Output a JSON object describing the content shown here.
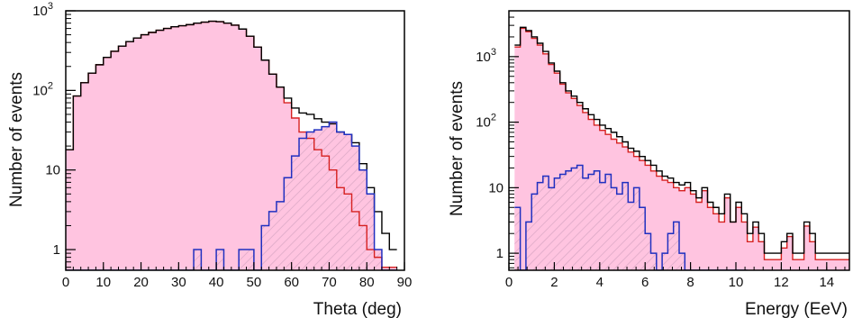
{
  "colors": {
    "total": "#000000",
    "red": "#d62020",
    "blue": "#2030c0",
    "fill": "#ffc4e0",
    "hatch": "#d8a6c4"
  },
  "chart_data": [
    {
      "type": "histogram",
      "xlabel": "Theta (deg)",
      "ylabel": "Number of events",
      "x_range": [
        0,
        90
      ],
      "y_range": [
        0.55,
        1000
      ],
      "log_y": true,
      "bin_width": 2,
      "x_ticks": [
        "0",
        "10",
        "20",
        "30",
        "40",
        "50",
        "60",
        "70",
        "80",
        "90"
      ],
      "y_ticks": [
        {
          "label": "1",
          "value": 1
        },
        {
          "label": "10",
          "value": 10
        },
        {
          "label": "10",
          "sup": "2",
          "value": 100
        },
        {
          "label": "10",
          "sup": "3",
          "value": 1000
        }
      ],
      "series": [
        {
          "style": "total-black",
          "edges": [
            0,
            2,
            4,
            6,
            8,
            10,
            12,
            14,
            16,
            18,
            20,
            22,
            24,
            26,
            28,
            30,
            32,
            34,
            36,
            38,
            40,
            42,
            44,
            46,
            48,
            50,
            52,
            54,
            56,
            58,
            60,
            62,
            64,
            66,
            68,
            70,
            72,
            74,
            76,
            78,
            80,
            82,
            84,
            86,
            88
          ],
          "values": [
            18,
            85,
            125,
            165,
            210,
            260,
            310,
            360,
            410,
            455,
            500,
            535,
            570,
            600,
            630,
            650,
            670,
            700,
            720,
            740,
            730,
            700,
            660,
            590,
            480,
            350,
            240,
            160,
            110,
            80,
            60,
            52,
            50,
            44,
            40,
            38,
            30,
            28,
            22,
            12,
            6,
            3,
            1.6,
            1
          ]
        },
        {
          "style": "red-filled",
          "edges": [
            0,
            2,
            4,
            6,
            8,
            10,
            12,
            14,
            16,
            18,
            20,
            22,
            24,
            26,
            28,
            30,
            32,
            34,
            36,
            38,
            40,
            42,
            44,
            46,
            48,
            50,
            52,
            54,
            56,
            58,
            60,
            62,
            64,
            66,
            68,
            70,
            72,
            74,
            76,
            78,
            80,
            82,
            84,
            86,
            88
          ],
          "values": [
            18,
            85,
            125,
            165,
            210,
            260,
            310,
            360,
            410,
            455,
            500,
            535,
            570,
            600,
            630,
            650,
            670,
            700,
            720,
            740,
            730,
            700,
            660,
            590,
            480,
            350,
            240,
            160,
            110,
            70,
            45,
            30,
            25,
            18,
            15,
            10,
            6,
            5,
            3,
            2,
            1,
            0.8,
            0.6,
            0.6
          ]
        },
        {
          "style": "blue-hatched",
          "edges": [
            0,
            2,
            4,
            6,
            8,
            10,
            12,
            14,
            16,
            18,
            20,
            22,
            24,
            26,
            28,
            30,
            32,
            34,
            36,
            38,
            40,
            42,
            44,
            46,
            48,
            50,
            52,
            54,
            56,
            58,
            60,
            62,
            64,
            66,
            68,
            70,
            72,
            74,
            76,
            78,
            80,
            82,
            84,
            86,
            88
          ],
          "values": [
            0.5,
            0.5,
            0.5,
            0.5,
            0.5,
            0.5,
            0.5,
            0.5,
            0.5,
            0.5,
            0.5,
            0.5,
            0.5,
            0.5,
            0.5,
            0.5,
            0.5,
            1,
            0.5,
            0.5,
            1,
            0.5,
            0.5,
            1,
            1,
            0.5,
            2,
            3,
            4,
            8,
            15,
            25,
            30,
            32,
            35,
            40,
            30,
            28,
            20,
            10,
            5,
            1,
            0.5,
            0.5
          ]
        }
      ]
    },
    {
      "type": "histogram",
      "xlabel": "Energy (EeV)",
      "ylabel": "Number of events",
      "x_range": [
        0,
        15
      ],
      "y_range": [
        0.55,
        5000
      ],
      "log_y": true,
      "bin_width": 0.25,
      "x_ticks": [
        "0",
        "2",
        "4",
        "6",
        "8",
        "10",
        "12",
        "14"
      ],
      "y_ticks": [
        {
          "label": "1",
          "value": 1
        },
        {
          "label": "10",
          "value": 10
        },
        {
          "label": "10",
          "sup": "2",
          "value": 100
        },
        {
          "label": "10",
          "sup": "3",
          "value": 1000
        }
      ],
      "series": [
        {
          "style": "total-black",
          "edges": [
            0.25,
            0.5,
            0.75,
            1,
            1.25,
            1.5,
            1.75,
            2,
            2.25,
            2.5,
            2.75,
            3,
            3.25,
            3.5,
            3.75,
            4,
            4.25,
            4.5,
            4.75,
            5,
            5.25,
            5.5,
            5.75,
            6,
            6.25,
            6.5,
            6.75,
            7,
            7.25,
            7.5,
            7.75,
            8,
            8.25,
            8.5,
            8.75,
            9,
            9.25,
            9.5,
            9.75,
            10,
            10.25,
            10.5,
            10.75,
            11,
            11.25,
            11.5,
            11.75,
            12,
            12.25,
            12.5,
            12.75,
            13,
            13.25,
            13.5,
            13.75,
            14,
            14.25,
            14.5,
            14.75
          ],
          "values": [
            1500,
            2800,
            2500,
            2000,
            1600,
            1200,
            800,
            600,
            400,
            300,
            250,
            200,
            160,
            130,
            110,
            90,
            80,
            70,
            60,
            50,
            40,
            36,
            30,
            26,
            22,
            18,
            15,
            14,
            12,
            11,
            12,
            9,
            7,
            10,
            6,
            5,
            4,
            8,
            3,
            6,
            4,
            2,
            3,
            2,
            1,
            1,
            1,
            1.5,
            2,
            1,
            1,
            3,
            2,
            1,
            1,
            1,
            1,
            1,
            1
          ]
        },
        {
          "style": "red-filled",
          "edges": [
            0.25,
            0.5,
            0.75,
            1,
            1.25,
            1.5,
            1.75,
            2,
            2.25,
            2.5,
            2.75,
            3,
            3.25,
            3.5,
            3.75,
            4,
            4.25,
            4.5,
            4.75,
            5,
            5.25,
            5.5,
            5.75,
            6,
            6.25,
            6.5,
            6.75,
            7,
            7.25,
            7.5,
            7.75,
            8,
            8.25,
            8.5,
            8.75,
            9,
            9.25,
            9.5,
            9.75,
            10,
            10.25,
            10.5,
            10.75,
            11,
            11.25,
            11.5,
            11.75,
            12,
            12.25,
            12.5,
            12.75,
            13,
            13.25,
            13.5,
            13.75,
            14,
            14.25,
            14.5,
            14.75
          ],
          "values": [
            1400,
            2700,
            2400,
            1900,
            1500,
            1100,
            760,
            560,
            380,
            280,
            230,
            180,
            140,
            110,
            90,
            75,
            65,
            55,
            48,
            42,
            35,
            30,
            26,
            22,
            18,
            15,
            13,
            12,
            10,
            9,
            10,
            8,
            6,
            9,
            5,
            4,
            3,
            7,
            3,
            5,
            3,
            1.5,
            2.5,
            1.5,
            0.8,
            0.8,
            0.8,
            1.2,
            1.8,
            0.8,
            0.8,
            2.6,
            1.5,
            0.8,
            0.8,
            0.8,
            0.8,
            0.8,
            0.8
          ]
        },
        {
          "style": "blue-hatched",
          "edges": [
            0.25,
            0.5,
            0.75,
            1,
            1.25,
            1.5,
            1.75,
            2,
            2.25,
            2.5,
            2.75,
            3,
            3.25,
            3.5,
            3.75,
            4,
            4.25,
            4.5,
            4.75,
            5,
            5.25,
            5.5,
            5.75,
            6,
            6.25,
            6.5,
            6.75,
            7,
            7.25,
            7.5,
            7.75,
            8,
            8.25,
            8.5,
            8.75,
            9,
            9.25,
            9.5,
            9.75,
            10,
            10.25
          ],
          "values": [
            5,
            0.5,
            3,
            8,
            12,
            15,
            10,
            14,
            16,
            18,
            20,
            22,
            14,
            16,
            18,
            12,
            16,
            10,
            8,
            12,
            6,
            10,
            5,
            2,
            1,
            0.5,
            1,
            2,
            3,
            1,
            0.5,
            0.5,
            0.5,
            0.5,
            0.5,
            0.5,
            0.5,
            0.5,
            0.5,
            0.5,
            0.5
          ]
        }
      ]
    }
  ]
}
